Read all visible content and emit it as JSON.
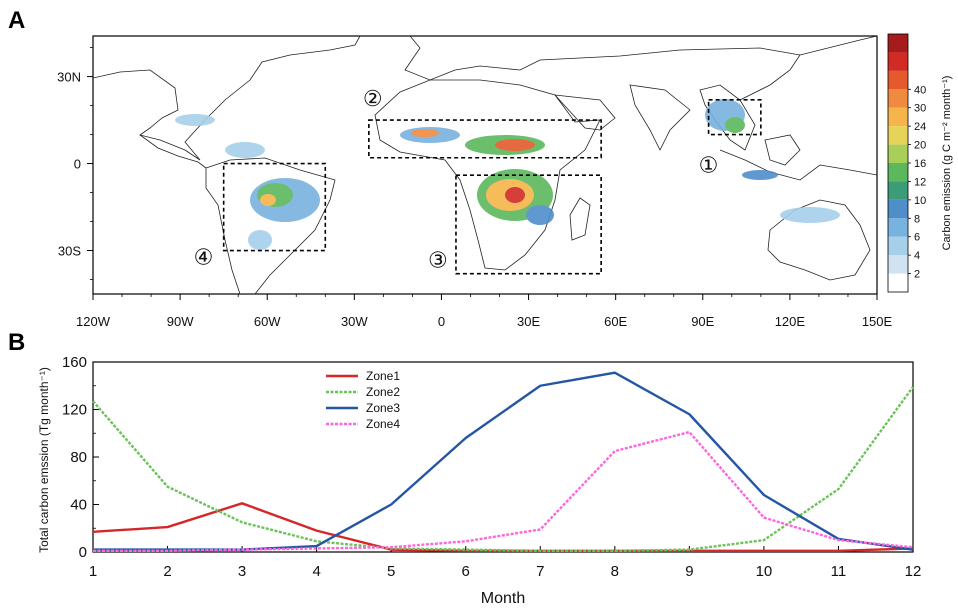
{
  "panel_a": {
    "letter": "A",
    "lon_ticks": [
      "120W",
      "90W",
      "60W",
      "30W",
      "0",
      "30E",
      "60E",
      "90E",
      "120E",
      "150E"
    ],
    "lat_ticks": [
      "30N",
      "0",
      "30S"
    ],
    "colorbar": {
      "label": "Carbon emission (g C m⁻² month⁻¹)",
      "ticks": [
        "2",
        "4",
        "6",
        "8",
        "10",
        "12",
        "16",
        "20",
        "24",
        "30",
        "40"
      ],
      "colors": [
        "#ffffff",
        "#cfe3f3",
        "#a6cfea",
        "#78b2de",
        "#4e8fca",
        "#3c9c78",
        "#5cb85c",
        "#a9cf5b",
        "#e6d35a",
        "#f6b54a",
        "#f08a3e",
        "#e45a2c",
        "#d22b24",
        "#a61b1b"
      ]
    },
    "zones": [
      {
        "id": "zone1",
        "number": "①",
        "lon": [
          92,
          110
        ],
        "lat": [
          10,
          22
        ]
      },
      {
        "id": "zone2",
        "number": "②",
        "lon": [
          -25,
          55
        ],
        "lat": [
          2,
          15
        ]
      },
      {
        "id": "zone3",
        "number": "③",
        "lon": [
          5,
          55
        ],
        "lat": [
          -38,
          -4
        ]
      },
      {
        "id": "zone4",
        "number": "④",
        "lon": [
          -75,
          -40
        ],
        "lat": [
          -30,
          0
        ]
      }
    ]
  },
  "panel_b": {
    "letter": "B",
    "chart_data": {
      "type": "line",
      "title": "",
      "xlabel": "Month",
      "ylabel": "Total carbon emssion (Tg month⁻¹)",
      "xlim": [
        1,
        12
      ],
      "ylim": [
        0,
        160
      ],
      "yticks": [
        0,
        40,
        80,
        120,
        160
      ],
      "x": [
        1,
        2,
        3,
        4,
        5,
        6,
        7,
        8,
        9,
        10,
        11,
        12
      ],
      "legend_position": "top-left-center",
      "series": [
        {
          "name": "Zone1",
          "color": "#d62728",
          "dashed": false,
          "values": [
            17,
            21,
            41,
            18,
            2,
            1,
            1,
            1,
            1,
            1,
            1,
            3
          ]
        },
        {
          "name": "Zone2",
          "color": "#6cc35a",
          "dashed": true,
          "values": [
            127,
            55,
            25,
            9,
            3,
            2,
            1,
            1,
            2,
            10,
            53,
            139
          ]
        },
        {
          "name": "Zone3",
          "color": "#2456a4",
          "dashed": false,
          "values": [
            2,
            2,
            2,
            5,
            40,
            96,
            140,
            151,
            116,
            48,
            11,
            2
          ]
        },
        {
          "name": "Zone4",
          "color": "#ff66dd",
          "dashed": true,
          "values": [
            1,
            1,
            2,
            3,
            4,
            9,
            19,
            85,
            101,
            29,
            10,
            4
          ]
        }
      ]
    }
  }
}
